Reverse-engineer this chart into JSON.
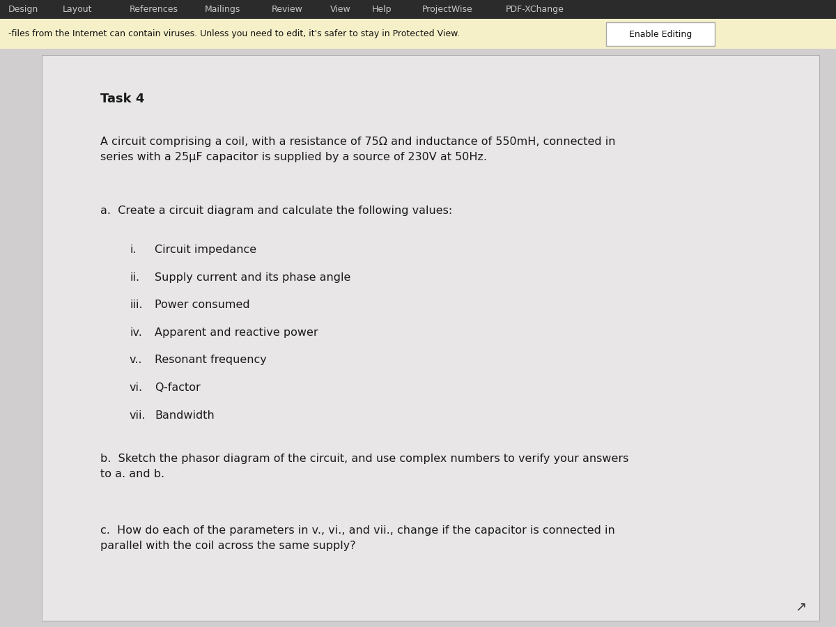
{
  "top_menu_bg": "#2b2b2b",
  "top_menu_text_color": "#c8c8c8",
  "top_menu_items": [
    "Design",
    "Layout",
    "References",
    "Mailings",
    "Review",
    "View",
    "Help",
    "ProjectWise",
    "PDF-XChange"
  ],
  "warning_bg": "#f5f0c8",
  "warning_text": "-files from the Internet can contain viruses. Unless you need to edit, it's safer to stay in Protected View.",
  "enable_editing_text": "Enable Editing",
  "enable_editing_bg": "#ffffff",
  "enable_editing_border": "#aaaaaa",
  "doc_bg": "#d0cece",
  "page_bg": "#e8e6e6",
  "task_title": "Task 4",
  "intro_text": "A circuit comprising a coil, with a resistance of 75Ω and inductance of 550mH, connected in\nseries with a 25μF capacitor is supplied by a source of 230V at 50Hz.",
  "part_a_label": "a.",
  "part_a_text": "Create a circuit diagram and calculate the following values:",
  "sub_items": [
    {
      "num": "i.",
      "text": "Circuit impedance"
    },
    {
      "num": "ii.",
      "text": "Supply current and its phase angle"
    },
    {
      "num": "iii.",
      "text": "Power consumed"
    },
    {
      "num": "iv.",
      "text": "Apparent and reactive power"
    },
    {
      "num": "v..",
      "text": "Resonant frequency"
    },
    {
      "num": "vi.",
      "text": "Q-factor"
    },
    {
      "num": "vii.",
      "text": "Bandwidth"
    }
  ],
  "part_b_label": "b.",
  "part_b_text": "Sketch the phasor diagram of the circuit, and use complex numbers to verify your answers\nto a. and b.",
  "part_c_label": "c.",
  "part_c_text": "How do each of the parameters in v., vi., and vii., change if the capacitor is connected in\nparallel with the coil across the same supply?",
  "text_color": "#1a1a1a",
  "font_size_menu": 9,
  "font_size_warning": 9,
  "font_size_task": 13,
  "font_size_body": 11.5,
  "font_size_sub": 11.5
}
